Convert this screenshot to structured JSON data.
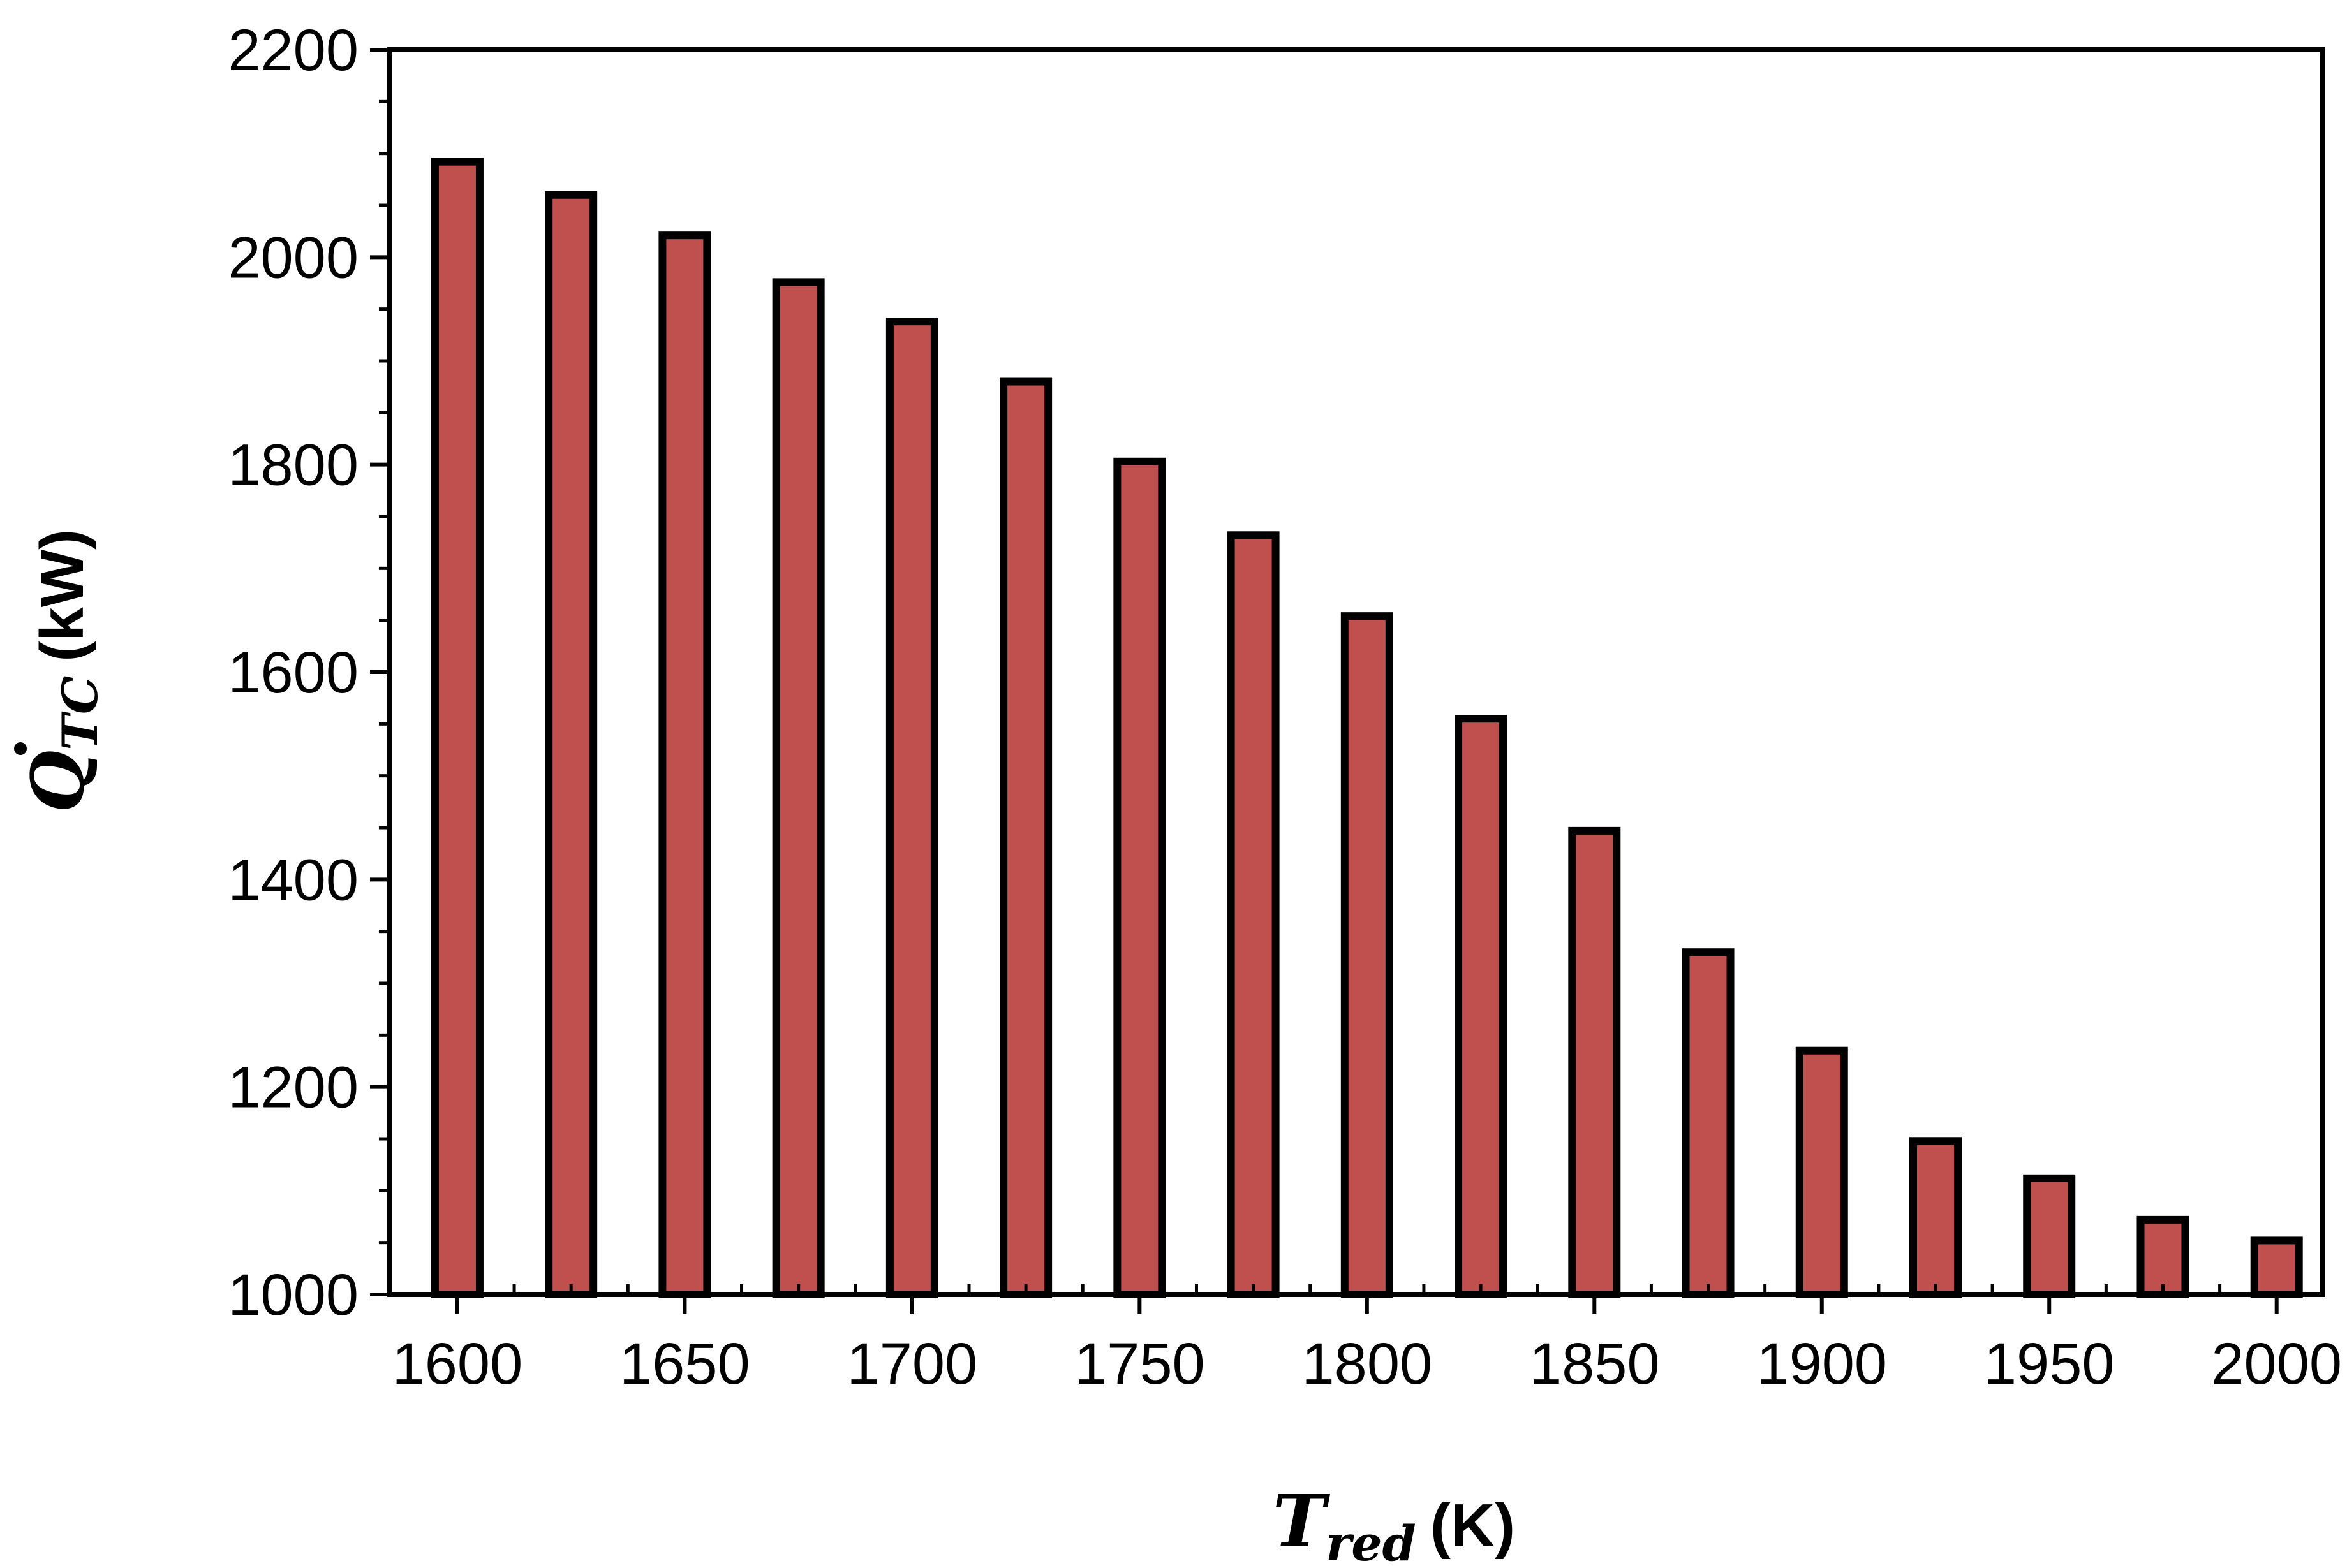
{
  "chart_data": {
    "type": "bar",
    "title": "",
    "xlabel": {
      "symbol": "T",
      "subscript": "red",
      "unit": "(K)"
    },
    "ylabel": {
      "symbol": "Q",
      "subscript": "TC",
      "unit": "(kW)"
    },
    "x": [
      1600,
      1625,
      1650,
      1675,
      1700,
      1725,
      1750,
      1775,
      1800,
      1825,
      1850,
      1875,
      1900,
      1925,
      1950,
      1975,
      2000
    ],
    "values": [
      2092,
      2060,
      2021,
      1976,
      1938,
      1880,
      1803,
      1732,
      1654,
      1555,
      1447,
      1330,
      1235,
      1148,
      1112,
      1072,
      1052
    ],
    "xlim": [
      1585,
      2010
    ],
    "ylim": [
      1000,
      2200
    ],
    "xticks": [
      1600,
      1650,
      1700,
      1750,
      1800,
      1850,
      1900,
      1950,
      2000
    ],
    "yticks": [
      1000,
      1200,
      1400,
      1600,
      1800,
      2000,
      2200
    ],
    "grid": false,
    "legend": "none",
    "bar_color": "#c0504d",
    "bar_edge_color": "#000000"
  }
}
